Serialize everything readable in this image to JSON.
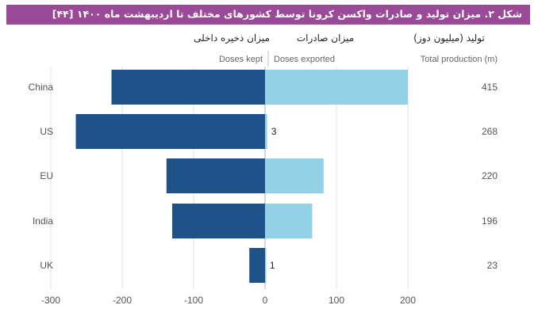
{
  "figure_title": "شکل ۲. میزان تولید و صادرات واکسن کرونا توسط کشورهای مختلف تا اردیبهشت ماه ۱۴۰۰ [۴۴]",
  "headers": {
    "kept_fa": "میزان ذخیره داخلی",
    "exported_fa": "میزان صادرات",
    "total_fa": "تولید (میلیون دوز)",
    "kept_en": "Doses kept",
    "exported_en": "Doses exported",
    "total_en": "Total production (m)"
  },
  "chart_data": {
    "type": "bar",
    "orientation": "horizontal-diverging",
    "categories": [
      "China",
      "US",
      "EU",
      "India",
      "UK"
    ],
    "series": [
      {
        "name": "Doses kept",
        "color": "#1f5289",
        "values": [
          -215,
          -265,
          -138,
          -130,
          -22
        ]
      },
      {
        "name": "Doses exported",
        "color": "#93d2e6",
        "values": [
          200,
          3,
          82,
          66,
          1
        ]
      }
    ],
    "total_production": [
      415,
      268,
      220,
      196,
      23
    ],
    "data_labels": [
      {
        "category": "US",
        "series": "Doses exported",
        "text": "3"
      },
      {
        "category": "UK",
        "series": "Doses exported",
        "text": "1"
      }
    ],
    "xlim": [
      -300,
      200
    ],
    "xticks": [
      -300,
      -200,
      -100,
      0,
      100,
      200
    ],
    "xtick_labels": [
      "-300",
      "-200",
      "-100",
      "0",
      "100",
      "200"
    ],
    "grid": "vertical"
  }
}
